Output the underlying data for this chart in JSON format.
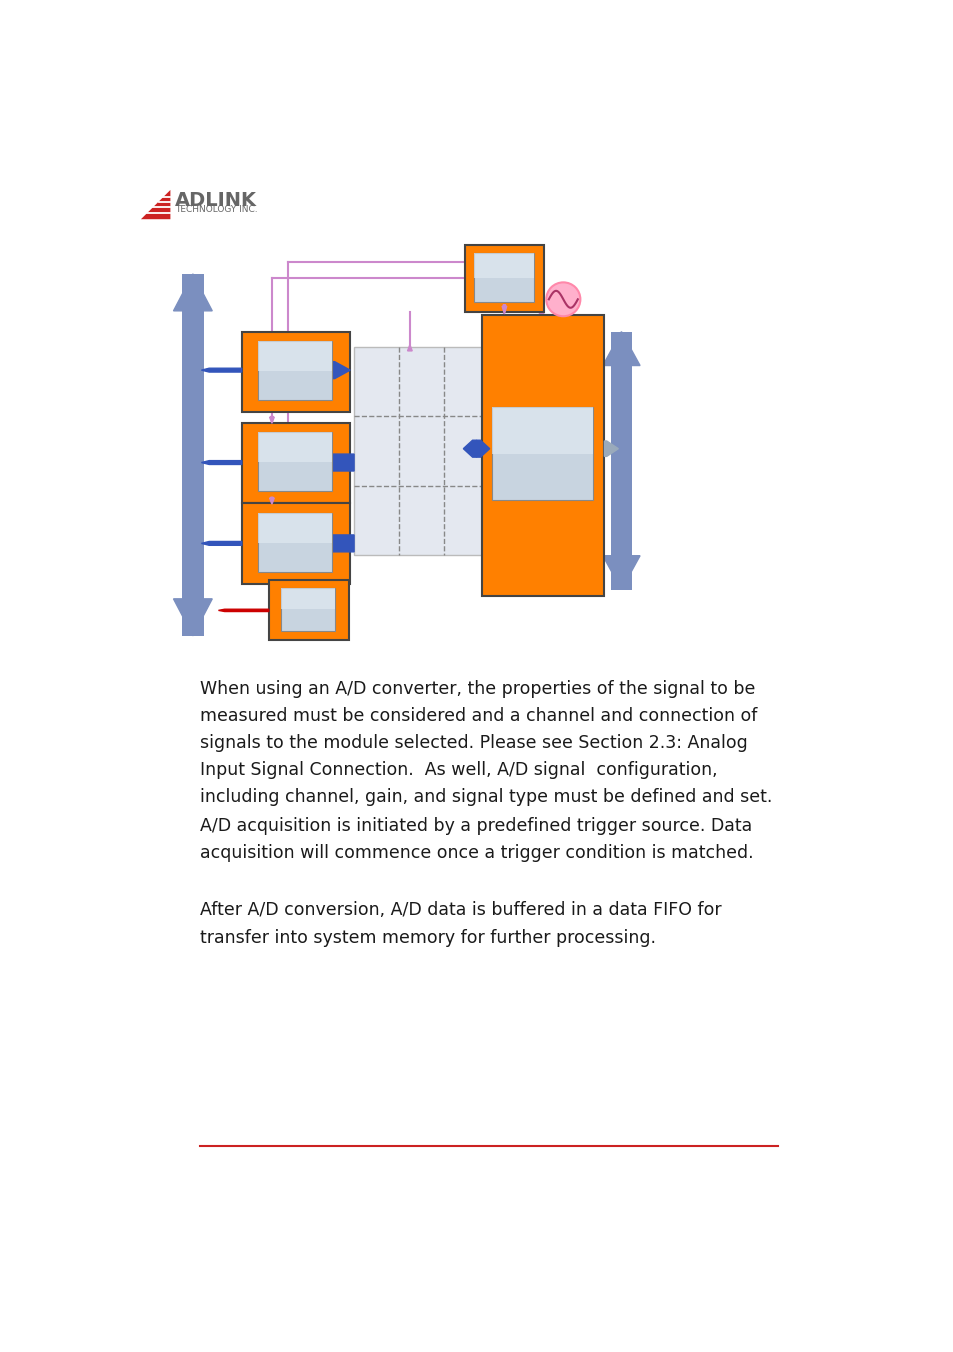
{
  "bg_color": "#ffffff",
  "orange_color": "#FF8000",
  "blue_arrow_color": "#7B8FBF",
  "dark_blue_arrow": "#3355BB",
  "purple_color": "#CC88CC",
  "pink_color": "#FFB0CC",
  "gray_box_color": "#C8D0DC",
  "grid_bg_color": "#E4E8F0",
  "red_arrow_color": "#CC0000",
  "text_color": "#1a1a1a",
  "paragraph1": "When using an A/D converter, the properties of the signal to be\nmeasured must be considered and a channel and connection of\nsignals to the module selected. Please see Section 2.3: Analog\nInput Signal Connection.  As well, A/D signal  configuration,\nincluding channel, gain, and signal type must be defined and set.",
  "paragraph2": "A/D acquisition is initiated by a predefined trigger source. Data\nacquisition will commence once a trigger condition is matched.",
  "paragraph3": "After A/D conversion, A/D data is buffered in a data FIFO for\ntransfer into system memory for further processing.",
  "footer_line_color": "#CC2222",
  "adlink_red": "#CC2222",
  "adlink_gray": "#666666"
}
